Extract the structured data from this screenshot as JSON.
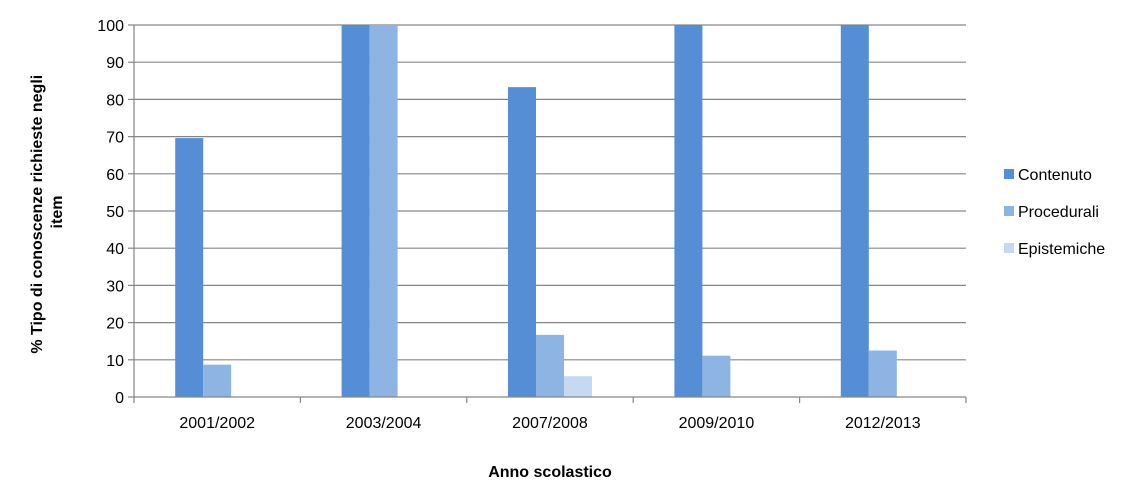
{
  "chart_data": {
    "type": "bar",
    "categories": [
      "2001/2002",
      "2003/2004",
      "2007/2008",
      "2009/2010",
      "2012/2013"
    ],
    "series": [
      {
        "name": "Contenuto",
        "color": "#558ED5",
        "values": [
          69.6,
          100,
          83.3,
          100,
          100
        ]
      },
      {
        "name": "Procedurali",
        "color": "#8EB4E3",
        "values": [
          8.7,
          100,
          16.7,
          11.1,
          12.5
        ]
      },
      {
        "name": "Epistemiche",
        "color": "#C6D9F1",
        "values": [
          0,
          0,
          5.6,
          0,
          0
        ]
      }
    ],
    "xlabel": "Anno scolastico",
    "ylabel_lines": [
      "% Tipo di conoscenze richieste negli",
      "item"
    ],
    "ylim": [
      0,
      100
    ],
    "yticks": [
      0,
      10,
      20,
      30,
      40,
      50,
      60,
      70,
      80,
      90,
      100
    ],
    "grid": true,
    "legend_position": "right",
    "grid_color": "#868686",
    "axis_color": "#868686"
  }
}
